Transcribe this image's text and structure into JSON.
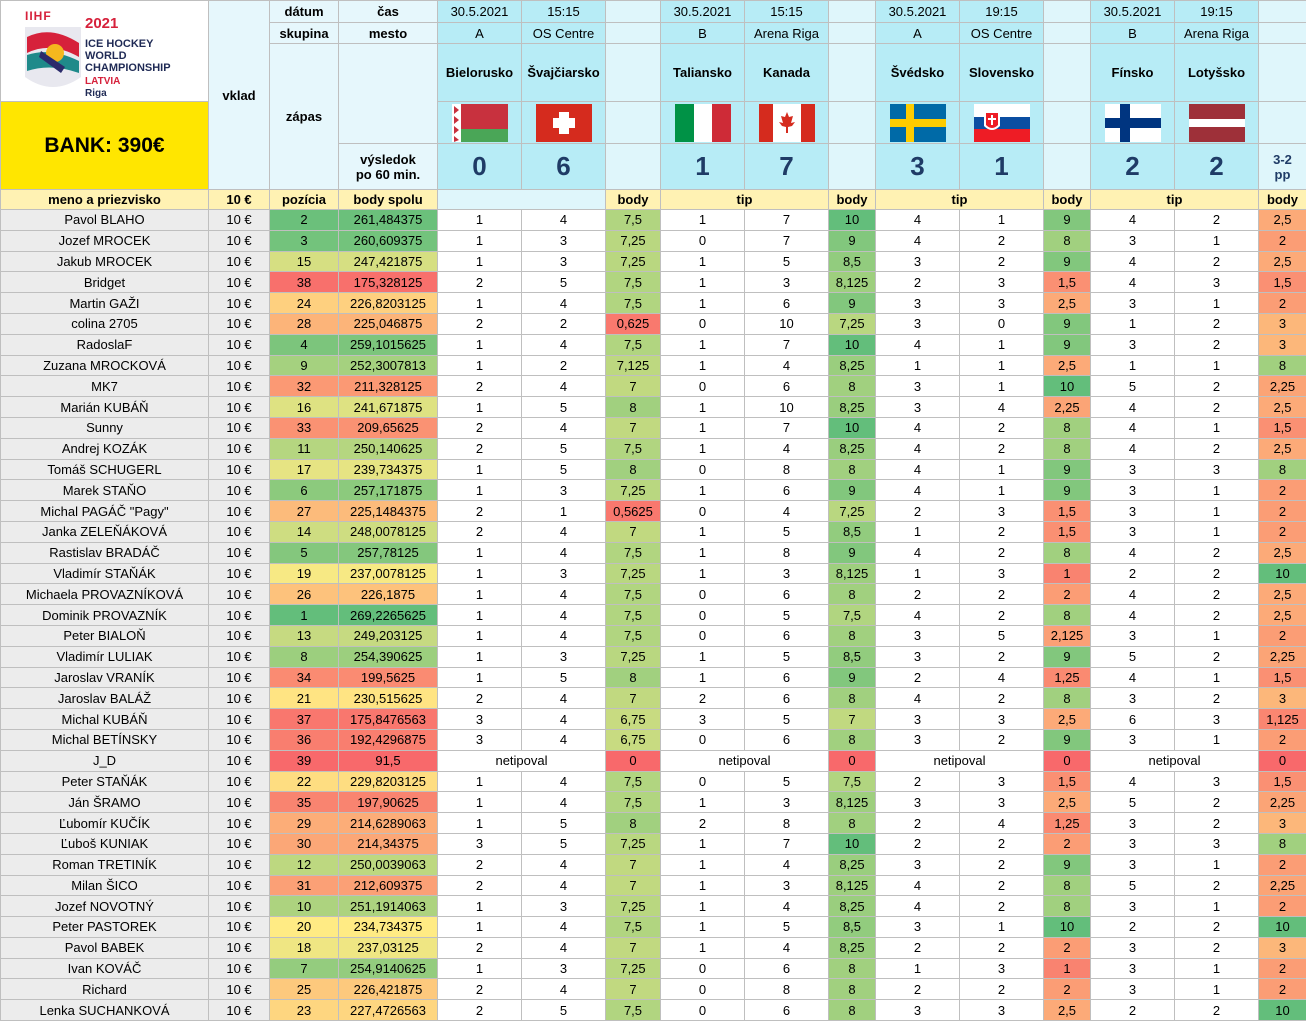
{
  "logo": {
    "year": "2021",
    "line1": "ICE HOCKEY",
    "line2": "WORLD",
    "line3": "CHAMPIONSHIP",
    "country": "LATVIA",
    "city": "Riga",
    "mark": "IIHF"
  },
  "bank_label": "BANK: 390€",
  "headers": {
    "datum": "dátum",
    "cas": "čas",
    "skupina": "skupina",
    "mesto": "mesto",
    "vklad": "vklad",
    "zapas": "zápas",
    "vysledok1": "výsledok",
    "vysledok2": "po 60 min.",
    "meno": "meno a priezvisko",
    "vklad_val": "10 €",
    "pozicia": "pozícia",
    "body_spolu": "body spolu",
    "body": "body",
    "tip": "tip"
  },
  "matches": [
    {
      "date": "30.5.2021",
      "time": "15:15",
      "group": "A",
      "venue": "OS Centre",
      "team1": "Bielorusko",
      "team2": "Švajčiarsko",
      "score1": "0",
      "score2": "6",
      "extra": "",
      "flag1": "belarus-flag",
      "flag2": "swiss-flag"
    },
    {
      "date": "30.5.2021",
      "time": "15:15",
      "group": "B",
      "venue": "Arena Riga",
      "team1": "Taliansko",
      "team2": "Kanada",
      "score1": "1",
      "score2": "7",
      "extra": "",
      "flag1": "italy-flag",
      "flag2": "canada-flag"
    },
    {
      "date": "30.5.2021",
      "time": "19:15",
      "group": "A",
      "venue": "OS Centre",
      "team1": "Švédsko",
      "team2": "Slovensko",
      "score1": "3",
      "score2": "1",
      "extra": "",
      "flag1": "sweden-flag",
      "flag2": "slovakia-flag"
    },
    {
      "date": "30.5.2021",
      "time": "19:15",
      "group": "B",
      "venue": "Arena Riga",
      "team1": "Fínsko",
      "team2": "Lotyšsko",
      "score1": "2",
      "score2": "2",
      "extra1": "3-2",
      "extra2": "pp",
      "flag1": "finland-flag",
      "flag2": "latvia-flag"
    }
  ],
  "colors": {
    "green": "#63be7b",
    "red": "#f8696b",
    "yellow": "#ffeb84",
    "cyan": "#b7ecf6",
    "bank": "#ffe600"
  },
  "rows": [
    {
      "name": "Pavol BLAHO",
      "vklad": "10 €",
      "pos": "2",
      "total": "261,484375",
      "t": [
        [
          "1",
          "4",
          "7,5"
        ],
        [
          "1",
          "7",
          "10"
        ],
        [
          "4",
          "1",
          "9"
        ],
        [
          "4",
          "2",
          "2,5"
        ]
      ]
    },
    {
      "name": "Jozef MROCEK",
      "vklad": "10 €",
      "pos": "3",
      "total": "260,609375",
      "t": [
        [
          "1",
          "3",
          "7,25"
        ],
        [
          "0",
          "7",
          "9"
        ],
        [
          "4",
          "2",
          "8"
        ],
        [
          "3",
          "1",
          "2"
        ]
      ]
    },
    {
      "name": "Jakub MROCEK",
      "vklad": "10 €",
      "pos": "15",
      "total": "247,421875",
      "t": [
        [
          "1",
          "3",
          "7,25"
        ],
        [
          "1",
          "5",
          "8,5"
        ],
        [
          "3",
          "2",
          "9"
        ],
        [
          "4",
          "2",
          "2,5"
        ]
      ]
    },
    {
      "name": "Bridget",
      "vklad": "10 €",
      "pos": "38",
      "total": "175,328125",
      "t": [
        [
          "2",
          "5",
          "7,5"
        ],
        [
          "1",
          "3",
          "8,125"
        ],
        [
          "2",
          "3",
          "1,5"
        ],
        [
          "4",
          "3",
          "1,5"
        ]
      ]
    },
    {
      "name": "Martin GAŽI",
      "vklad": "10 €",
      "pos": "24",
      "total": "226,8203125",
      "t": [
        [
          "1",
          "4",
          "7,5"
        ],
        [
          "1",
          "6",
          "9"
        ],
        [
          "3",
          "3",
          "2,5"
        ],
        [
          "3",
          "1",
          "2"
        ]
      ]
    },
    {
      "name": "colina 2705",
      "vklad": "10 €",
      "pos": "28",
      "total": "225,046875",
      "t": [
        [
          "2",
          "2",
          "0,625"
        ],
        [
          "0",
          "10",
          "7,25"
        ],
        [
          "3",
          "0",
          "9"
        ],
        [
          "1",
          "2",
          "3"
        ]
      ]
    },
    {
      "name": "RadoslaF",
      "vklad": "10 €",
      "pos": "4",
      "total": "259,1015625",
      "t": [
        [
          "1",
          "4",
          "7,5"
        ],
        [
          "1",
          "7",
          "10"
        ],
        [
          "4",
          "1",
          "9"
        ],
        [
          "3",
          "2",
          "3"
        ]
      ]
    },
    {
      "name": "Zuzana MROCKOVÁ",
      "vklad": "10 €",
      "pos": "9",
      "total": "252,3007813",
      "t": [
        [
          "1",
          "2",
          "7,125"
        ],
        [
          "1",
          "4",
          "8,25"
        ],
        [
          "1",
          "1",
          "2,5"
        ],
        [
          "1",
          "1",
          "8"
        ]
      ]
    },
    {
      "name": "MK7",
      "vklad": "10 €",
      "pos": "32",
      "total": "211,328125",
      "t": [
        [
          "2",
          "4",
          "7"
        ],
        [
          "0",
          "6",
          "8"
        ],
        [
          "3",
          "1",
          "10"
        ],
        [
          "5",
          "2",
          "2,25"
        ]
      ]
    },
    {
      "name": "Marián KUBÁŇ",
      "vklad": "10 €",
      "pos": "16",
      "total": "241,671875",
      "t": [
        [
          "1",
          "5",
          "8"
        ],
        [
          "1",
          "10",
          "8,25"
        ],
        [
          "3",
          "4",
          "2,25"
        ],
        [
          "4",
          "2",
          "2,5"
        ]
      ]
    },
    {
      "name": "Sunny",
      "vklad": "10 €",
      "pos": "33",
      "total": "209,65625",
      "t": [
        [
          "2",
          "4",
          "7"
        ],
        [
          "1",
          "7",
          "10"
        ],
        [
          "4",
          "2",
          "8"
        ],
        [
          "4",
          "1",
          "1,5"
        ]
      ]
    },
    {
      "name": "Andrej KOZÁK",
      "vklad": "10 €",
      "pos": "11",
      "total": "250,140625",
      "t": [
        [
          "2",
          "5",
          "7,5"
        ],
        [
          "1",
          "4",
          "8,25"
        ],
        [
          "4",
          "2",
          "8"
        ],
        [
          "4",
          "2",
          "2,5"
        ]
      ]
    },
    {
      "name": "Tomáš SCHUGERL",
      "vklad": "10 €",
      "pos": "17",
      "total": "239,734375",
      "t": [
        [
          "1",
          "5",
          "8"
        ],
        [
          "0",
          "8",
          "8"
        ],
        [
          "4",
          "1",
          "9"
        ],
        [
          "3",
          "3",
          "8"
        ]
      ]
    },
    {
      "name": "Marek STAŇO",
      "vklad": "10 €",
      "pos": "6",
      "total": "257,171875",
      "t": [
        [
          "1",
          "3",
          "7,25"
        ],
        [
          "1",
          "6",
          "9"
        ],
        [
          "4",
          "1",
          "9"
        ],
        [
          "3",
          "1",
          "2"
        ]
      ]
    },
    {
      "name": "Michal PAGÁČ \"Pagy\"",
      "vklad": "10 €",
      "pos": "27",
      "total": "225,1484375",
      "t": [
        [
          "2",
          "1",
          "0,5625"
        ],
        [
          "0",
          "4",
          "7,25"
        ],
        [
          "2",
          "3",
          "1,5"
        ],
        [
          "3",
          "1",
          "2"
        ]
      ]
    },
    {
      "name": "Janka ZELEŇÁKOVÁ",
      "vklad": "10 €",
      "pos": "14",
      "total": "248,0078125",
      "t": [
        [
          "2",
          "4",
          "7"
        ],
        [
          "1",
          "5",
          "8,5"
        ],
        [
          "1",
          "2",
          "1,5"
        ],
        [
          "3",
          "1",
          "2"
        ]
      ]
    },
    {
      "name": "Rastislav BRADÁČ",
      "vklad": "10 €",
      "pos": "5",
      "total": "257,78125",
      "t": [
        [
          "1",
          "4",
          "7,5"
        ],
        [
          "1",
          "8",
          "9"
        ],
        [
          "4",
          "2",
          "8"
        ],
        [
          "4",
          "2",
          "2,5"
        ]
      ]
    },
    {
      "name": "Vladimír STAŇÁK",
      "vklad": "10 €",
      "pos": "19",
      "total": "237,0078125",
      "t": [
        [
          "1",
          "3",
          "7,25"
        ],
        [
          "1",
          "3",
          "8,125"
        ],
        [
          "1",
          "3",
          "1"
        ],
        [
          "2",
          "2",
          "10"
        ]
      ]
    },
    {
      "name": "Michaela PROVAZNÍKOVÁ",
      "vklad": "10 €",
      "pos": "26",
      "total": "226,1875",
      "t": [
        [
          "1",
          "4",
          "7,5"
        ],
        [
          "0",
          "6",
          "8"
        ],
        [
          "2",
          "2",
          "2"
        ],
        [
          "4",
          "2",
          "2,5"
        ]
      ]
    },
    {
      "name": "Dominik PROVAZNÍK",
      "vklad": "10 €",
      "pos": "1",
      "total": "269,2265625",
      "t": [
        [
          "1",
          "4",
          "7,5"
        ],
        [
          "0",
          "5",
          "7,5"
        ],
        [
          "4",
          "2",
          "8"
        ],
        [
          "4",
          "2",
          "2,5"
        ]
      ]
    },
    {
      "name": "Peter BIALOŇ",
      "vklad": "10 €",
      "pos": "13",
      "total": "249,203125",
      "t": [
        [
          "1",
          "4",
          "7,5"
        ],
        [
          "0",
          "6",
          "8"
        ],
        [
          "3",
          "5",
          "2,125"
        ],
        [
          "3",
          "1",
          "2"
        ]
      ]
    },
    {
      "name": "Vladimír LULIAK",
      "vklad": "10 €",
      "pos": "8",
      "total": "254,390625",
      "t": [
        [
          "1",
          "3",
          "7,25"
        ],
        [
          "1",
          "5",
          "8,5"
        ],
        [
          "3",
          "2",
          "9"
        ],
        [
          "5",
          "2",
          "2,25"
        ]
      ]
    },
    {
      "name": "Jaroslav VRANÍK",
      "vklad": "10 €",
      "pos": "34",
      "total": "199,5625",
      "t": [
        [
          "1",
          "5",
          "8"
        ],
        [
          "1",
          "6",
          "9"
        ],
        [
          "2",
          "4",
          "1,25"
        ],
        [
          "4",
          "1",
          "1,5"
        ]
      ]
    },
    {
      "name": "Jaroslav BALÁŽ",
      "vklad": "10 €",
      "pos": "21",
      "total": "230,515625",
      "t": [
        [
          "2",
          "4",
          "7"
        ],
        [
          "2",
          "6",
          "8"
        ],
        [
          "4",
          "2",
          "8"
        ],
        [
          "3",
          "2",
          "3"
        ]
      ]
    },
    {
      "name": "Michal KUBÁŇ",
      "vklad": "10 €",
      "pos": "37",
      "total": "175,8476563",
      "t": [
        [
          "3",
          "4",
          "6,75"
        ],
        [
          "3",
          "5",
          "7"
        ],
        [
          "3",
          "3",
          "2,5"
        ],
        [
          "6",
          "3",
          "1,125"
        ]
      ]
    },
    {
      "name": "Michal BETÍNSKY",
      "vklad": "10 €",
      "pos": "36",
      "total": "192,4296875",
      "t": [
        [
          "3",
          "4",
          "6,75"
        ],
        [
          "0",
          "6",
          "8"
        ],
        [
          "3",
          "2",
          "9"
        ],
        [
          "3",
          "1",
          "2"
        ]
      ]
    },
    {
      "name": "J_D",
      "vklad": "10 €",
      "pos": "39",
      "total": "91,5",
      "none": "netipoval",
      "t": [
        [
          "",
          "",
          "0"
        ],
        [
          "",
          "",
          "0"
        ],
        [
          "",
          "",
          "0"
        ],
        [
          "",
          "",
          "0"
        ]
      ]
    },
    {
      "name": "Peter STAŇÁK",
      "vklad": "10 €",
      "pos": "22",
      "total": "229,8203125",
      "t": [
        [
          "1",
          "4",
          "7,5"
        ],
        [
          "0",
          "5",
          "7,5"
        ],
        [
          "2",
          "3",
          "1,5"
        ],
        [
          "4",
          "3",
          "1,5"
        ]
      ]
    },
    {
      "name": "Ján ŠRAMO",
      "vklad": "10 €",
      "pos": "35",
      "total": "197,90625",
      "t": [
        [
          "1",
          "4",
          "7,5"
        ],
        [
          "1",
          "3",
          "8,125"
        ],
        [
          "3",
          "3",
          "2,5"
        ],
        [
          "5",
          "2",
          "2,25"
        ]
      ]
    },
    {
      "name": "Ľubomír KUČÍK",
      "vklad": "10 €",
      "pos": "29",
      "total": "214,6289063",
      "t": [
        [
          "1",
          "5",
          "8"
        ],
        [
          "2",
          "8",
          "8"
        ],
        [
          "2",
          "4",
          "1,25"
        ],
        [
          "3",
          "2",
          "3"
        ]
      ]
    },
    {
      "name": "Ľuboš KUNIAK",
      "vklad": "10 €",
      "pos": "30",
      "total": "214,34375",
      "t": [
        [
          "3",
          "5",
          "7,25"
        ],
        [
          "1",
          "7",
          "10"
        ],
        [
          "2",
          "2",
          "2"
        ],
        [
          "3",
          "3",
          "8"
        ]
      ]
    },
    {
      "name": "Roman TRETINÍK",
      "vklad": "10 €",
      "pos": "12",
      "total": "250,0039063",
      "t": [
        [
          "2",
          "4",
          "7"
        ],
        [
          "1",
          "4",
          "8,25"
        ],
        [
          "3",
          "2",
          "9"
        ],
        [
          "3",
          "1",
          "2"
        ]
      ]
    },
    {
      "name": "Milan ŠICO",
      "vklad": "10 €",
      "pos": "31",
      "total": "212,609375",
      "t": [
        [
          "2",
          "4",
          "7"
        ],
        [
          "1",
          "3",
          "8,125"
        ],
        [
          "4",
          "2",
          "8"
        ],
        [
          "5",
          "2",
          "2,25"
        ]
      ]
    },
    {
      "name": "Jozef NOVOTNÝ",
      "vklad": "10 €",
      "pos": "10",
      "total": "251,1914063",
      "t": [
        [
          "1",
          "3",
          "7,25"
        ],
        [
          "1",
          "4",
          "8,25"
        ],
        [
          "4",
          "2",
          "8"
        ],
        [
          "3",
          "1",
          "2"
        ]
      ]
    },
    {
      "name": "Peter PASTOREK",
      "vklad": "10 €",
      "pos": "20",
      "total": "234,734375",
      "t": [
        [
          "1",
          "4",
          "7,5"
        ],
        [
          "1",
          "5",
          "8,5"
        ],
        [
          "3",
          "1",
          "10"
        ],
        [
          "2",
          "2",
          "10"
        ]
      ]
    },
    {
      "name": "Pavol BABEK",
      "vklad": "10 €",
      "pos": "18",
      "total": "237,03125",
      "t": [
        [
          "2",
          "4",
          "7"
        ],
        [
          "1",
          "4",
          "8,25"
        ],
        [
          "2",
          "2",
          "2"
        ],
        [
          "3",
          "2",
          "3"
        ]
      ]
    },
    {
      "name": "Ivan KOVÁČ",
      "vklad": "10 €",
      "pos": "7",
      "total": "254,9140625",
      "t": [
        [
          "1",
          "3",
          "7,25"
        ],
        [
          "0",
          "6",
          "8"
        ],
        [
          "1",
          "3",
          "1"
        ],
        [
          "3",
          "1",
          "2"
        ]
      ]
    },
    {
      "name": "Richard",
      "vklad": "10 €",
      "pos": "25",
      "total": "226,421875",
      "t": [
        [
          "2",
          "4",
          "7"
        ],
        [
          "0",
          "8",
          "8"
        ],
        [
          "2",
          "2",
          "2"
        ],
        [
          "3",
          "1",
          "2"
        ]
      ]
    },
    {
      "name": "Lenka SUCHANKOVÁ",
      "vklad": "10 €",
      "pos": "23",
      "total": "227,4726563",
      "t": [
        [
          "2",
          "5",
          "7,5"
        ],
        [
          "0",
          "6",
          "8"
        ],
        [
          "3",
          "3",
          "2,5"
        ],
        [
          "2",
          "2",
          "10"
        ]
      ]
    }
  ]
}
